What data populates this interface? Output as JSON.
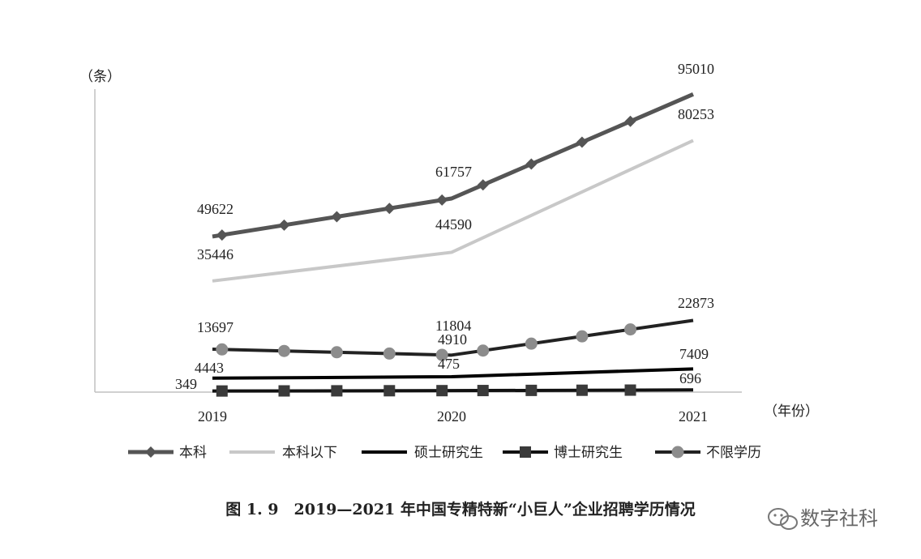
{
  "chart_data": {
    "type": "line",
    "ylabel": "（条）",
    "xlabel": "（年份）",
    "categories": [
      "2019",
      "2020",
      "2021"
    ],
    "ylim": [
      0,
      100000
    ],
    "grid": false,
    "legend_position": "bottom",
    "series": [
      {
        "name": "本科",
        "values": [
          49622,
          61757,
          95010
        ],
        "color": "#555555",
        "marker": "diamond",
        "width": 5
      },
      {
        "name": "本科以下",
        "values": [
          35446,
          44590,
          80253
        ],
        "color": "#c8c8c8",
        "marker": "none",
        "width": 4
      },
      {
        "name": "硕士研究生",
        "values": [
          4443,
          4910,
          7409
        ],
        "color": "#000000",
        "marker": "none",
        "width": 4
      },
      {
        "name": "博士研究生",
        "values": [
          349,
          475,
          696
        ],
        "color": "#111111",
        "marker": "square",
        "width": 4
      },
      {
        "name": "不限学历",
        "values": [
          13697,
          11804,
          22873
        ],
        "color": "#222222",
        "marker": "circle",
        "width": 4
      }
    ]
  },
  "caption": "图 1. 9　2019—2021 年中国专精特新“小巨人”企业招聘学历情况",
  "watermark": "数字社科"
}
